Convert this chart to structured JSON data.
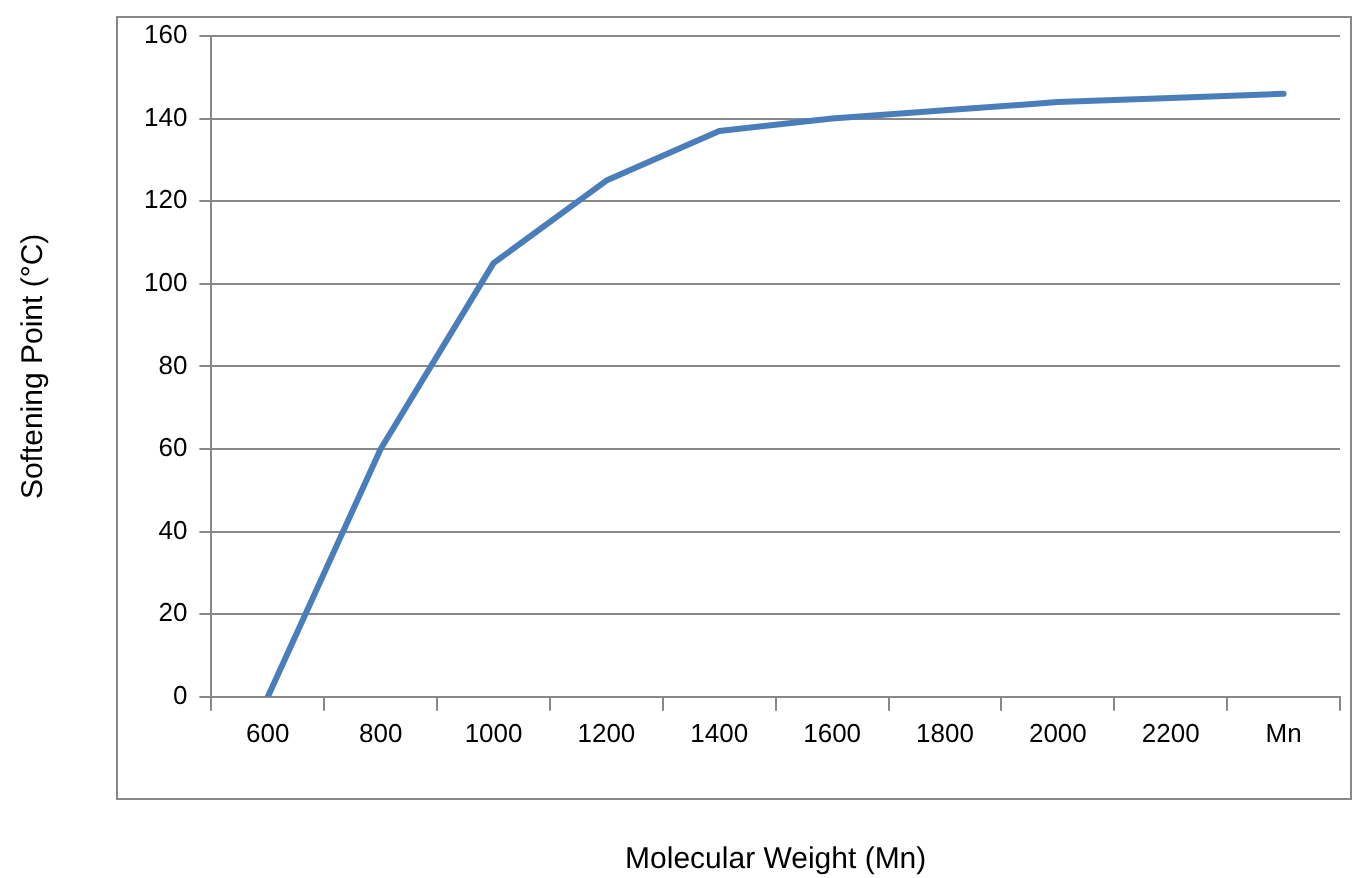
{
  "chart_data": {
    "type": "line",
    "xlabel": "Molecular Weight (Mn)",
    "ylabel": "Softening Point (°C)",
    "categories": [
      "600",
      "800",
      "1000",
      "1200",
      "1400",
      "1600",
      "1800",
      "2000",
      "2200",
      "Mn"
    ],
    "series": [
      {
        "color": "#4a7ebb",
        "values": [
          0,
          60,
          105,
          125,
          137,
          140,
          142,
          144,
          145,
          146
        ]
      }
    ],
    "ylim": [
      0,
      160
    ],
    "yticks": [
      0,
      20,
      40,
      60,
      80,
      100,
      120,
      140,
      160
    ],
    "grid": "y",
    "legend": false,
    "marker": "none",
    "line_style": "solid"
  }
}
